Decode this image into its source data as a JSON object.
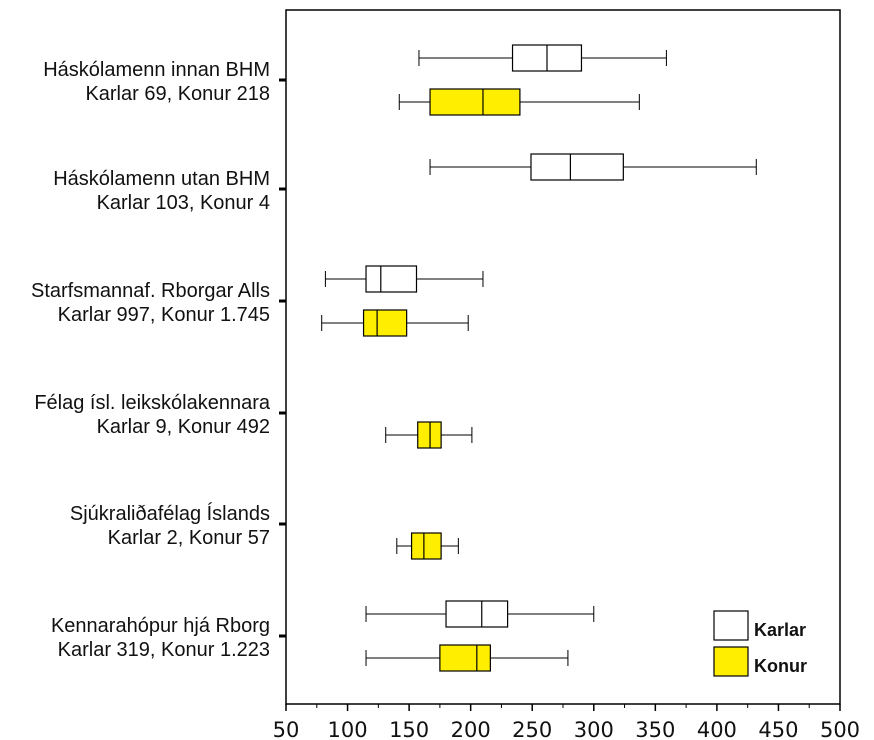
{
  "chart_data": {
    "type": "boxplot",
    "title": "",
    "xlabel": "",
    "ylabel": "",
    "xlim": [
      50,
      500
    ],
    "x_ticks": [
      50,
      100,
      150,
      200,
      250,
      300,
      350,
      400,
      450,
      500
    ],
    "orientation": "horizontal",
    "legend_position": "bottom-right",
    "series": [
      {
        "name": "Karlar",
        "color": "#ffffff"
      },
      {
        "name": "Konur",
        "color": "#ffee00"
      }
    ],
    "groups": [
      {
        "label": [
          "Háskólamenn innan BHM",
          "Karlar 69, Konur 218"
        ],
        "boxes": [
          {
            "series": "Karlar",
            "whisker_low": 158,
            "q1": 234,
            "median": 262,
            "q3": 290,
            "whisker_high": 359
          },
          {
            "series": "Konur",
            "whisker_low": 142,
            "q1": 167,
            "median": 210,
            "q3": 240,
            "whisker_high": 337
          }
        ]
      },
      {
        "label": [
          "Háskólamenn utan BHM",
          "Karlar 103, Konur 4"
        ],
        "boxes": [
          {
            "series": "Karlar",
            "whisker_low": 167,
            "q1": 249,
            "median": 281,
            "q3": 324,
            "whisker_high": 432
          }
        ]
      },
      {
        "label": [
          "Starfsmannaf. Rborgar Alls",
          "Karlar 997, Konur 1.745"
        ],
        "boxes": [
          {
            "series": "Karlar",
            "whisker_low": 82,
            "q1": 115,
            "median": 127,
            "q3": 156,
            "whisker_high": 210
          },
          {
            "series": "Konur",
            "whisker_low": 79,
            "q1": 113,
            "median": 124,
            "q3": 148,
            "whisker_high": 198
          }
        ]
      },
      {
        "label": [
          "Félag ísl. leikskólakennara",
          "Karlar 9, Konur 492"
        ],
        "boxes": [
          {
            "series": "Konur",
            "whisker_low": 131,
            "q1": 157,
            "median": 167,
            "q3": 176,
            "whisker_high": 201
          }
        ]
      },
      {
        "label": [
          "Sjúkraliðafélag Íslands",
          "Karlar 2, Konur 57"
        ],
        "boxes": [
          {
            "series": "Konur",
            "whisker_low": 140,
            "q1": 152,
            "median": 162,
            "q3": 176,
            "whisker_high": 190
          }
        ]
      },
      {
        "label": [
          "Kennarahópur hjá Rborg",
          "Karlar 319, Konur 1.223"
        ],
        "boxes": [
          {
            "series": "Karlar",
            "whisker_low": 115,
            "q1": 180,
            "median": 209,
            "q3": 230,
            "whisker_high": 300
          },
          {
            "series": "Konur",
            "whisker_low": 115,
            "q1": 175,
            "median": 205,
            "q3": 216,
            "whisker_high": 279
          }
        ]
      }
    ]
  }
}
